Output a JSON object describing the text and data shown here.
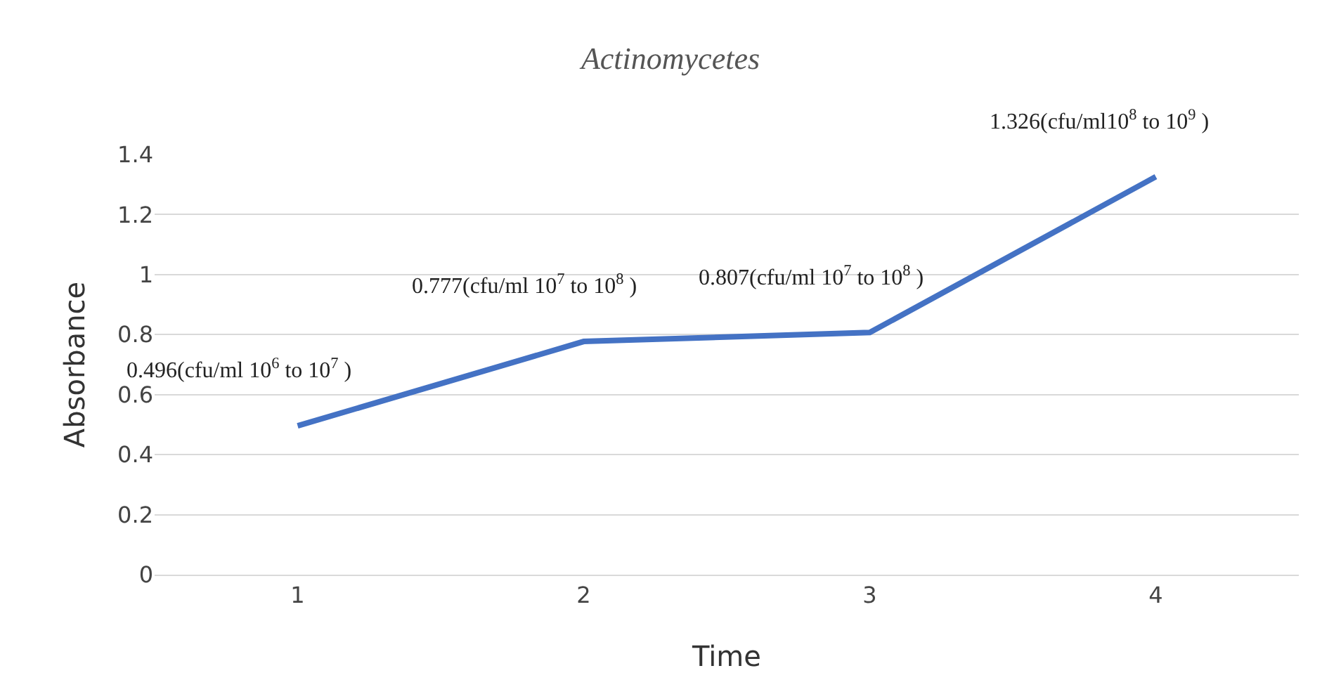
{
  "chart_data": {
    "type": "line",
    "title": "Actinomycetes",
    "xlabel": "Time",
    "ylabel": "Absorbance",
    "categories": [
      "1",
      "2",
      "3",
      "4"
    ],
    "series": [
      {
        "color": "#4472c4",
        "values": [
          0.496,
          0.777,
          0.807,
          1.326
        ]
      }
    ],
    "ylim": [
      0,
      1.4
    ],
    "yticks": [
      0,
      0.2,
      0.4,
      0.6,
      0.8,
      1,
      1.2,
      1.4
    ],
    "grid": "y",
    "legend": false,
    "marker": "none",
    "line_style": "solid",
    "annotations": [
      {
        "text": "0.496(cfu/ml 10$^{6}$ to 10$^{7}$ )",
        "x": "1",
        "y": 0.496
      },
      {
        "text": "0.777(cfu/ml 10$^{7}$ to 10$^{8}$ )",
        "x": "2",
        "y": 0.777
      },
      {
        "text": "0.807(cfu/ml 10$^{7}$ to 10$^{8}$ )",
        "x": "3",
        "y": 0.807
      },
      {
        "text": "1.326(cfu/ml10$^{8}$ to 10$^{9}$ )",
        "x": "4",
        "y": 1.326
      }
    ]
  }
}
